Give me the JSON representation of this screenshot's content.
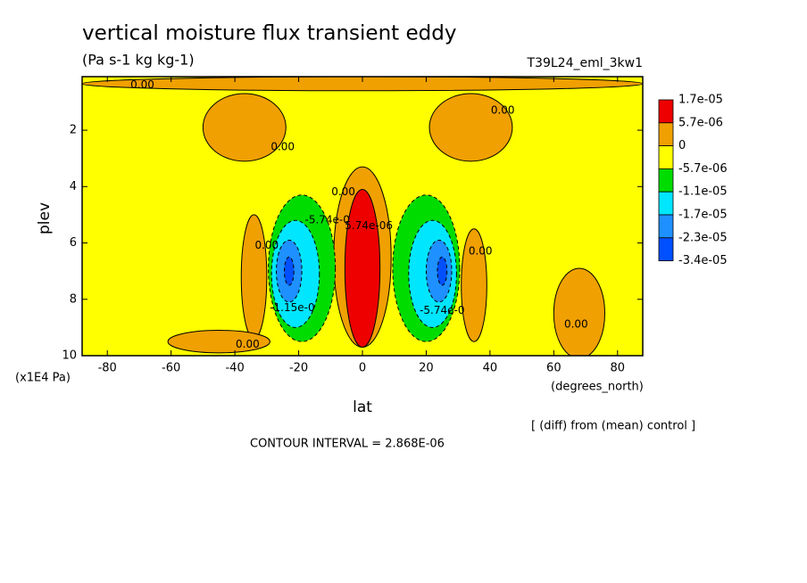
{
  "chart_data": {
    "type": "contour",
    "title": "vertical moisture flux transient eddy",
    "subtitle": "(Pa s-1 kg kg-1)",
    "run_label": "T39L24_eml_3kw1",
    "x_label": "lat",
    "x_units": "(degrees_north)",
    "y_label": "plev",
    "y_units": "(x1E4 Pa)",
    "note": "[ (diff) from (mean) control ]",
    "contour_interval": "CONTOUR INTERVAL = 2.868E-06",
    "xlim": [
      -87.9,
      87.9
    ],
    "xticks": [
      -80,
      -60,
      -40,
      -20,
      0,
      20,
      40,
      60,
      80
    ],
    "ylim": [
      10,
      0.1
    ],
    "yticks": [
      2,
      4,
      6,
      8,
      10
    ],
    "levels": [
      {
        "value": 1.7e-05,
        "label": "1.7e-05"
      },
      {
        "value": 5.7e-06,
        "label": "5.7e-06"
      },
      0,
      {
        "value": -5.7e-06,
        "label": "-5.7e-06"
      },
      {
        "value": -1.1e-05,
        "label": "-1.1e-05"
      },
      {
        "value": -1.7e-05,
        "label": "-1.7e-05"
      },
      {
        "value": -2.3e-05,
        "label": "-2.3e-05"
      },
      {
        "value": -3.4e-05,
        "label": "-3.4e-05"
      }
    ],
    "colors": [
      "#ee0000",
      "#f0a000",
      "#ffff00",
      "#00dc00",
      "#00e6ff",
      "#1e90ff",
      "#0050ff"
    ],
    "regions": [
      {
        "lat": 0,
        "plev": 0.35,
        "dlat": 88,
        "dplev": 0.25,
        "value": 3e-06
      },
      {
        "lat": -37,
        "plev": 1.9,
        "dlat": 13,
        "dplev": 1.2,
        "value": 3e-06
      },
      {
        "lat": 34,
        "plev": 1.9,
        "dlat": 13,
        "dplev": 1.2,
        "value": 3e-06
      },
      {
        "lat": 0,
        "plev": 6.5,
        "dlat": 9,
        "dplev": 3.2,
        "value": 3e-06
      },
      {
        "lat": -34,
        "plev": 7.2,
        "dlat": 4,
        "dplev": 2.2,
        "value": 3e-06
      },
      {
        "lat": 35,
        "plev": 7.5,
        "dlat": 4,
        "dplev": 2.0,
        "value": 3e-06
      },
      {
        "lat": -45,
        "plev": 9.5,
        "dlat": 16,
        "dplev": 0.4,
        "value": 3e-06
      },
      {
        "lat": 68,
        "plev": 8.5,
        "dlat": 8,
        "dplev": 1.6,
        "value": 3e-06
      },
      {
        "lat": -19,
        "plev": 6.9,
        "dlat": 10.5,
        "dplev": 2.6,
        "value": -8e-06
      },
      {
        "lat": 20,
        "plev": 6.9,
        "dlat": 10.5,
        "dplev": 2.6,
        "value": -8e-06
      },
      {
        "lat": -21,
        "plev": 7.1,
        "dlat": 7.5,
        "dplev": 1.9,
        "value": -1.4e-05
      },
      {
        "lat": 22,
        "plev": 7.1,
        "dlat": 7.5,
        "dplev": 1.9,
        "value": -1.4e-05
      },
      {
        "lat": -23,
        "plev": 7.0,
        "dlat": 4,
        "dplev": 1.1,
        "value": -2e-05
      },
      {
        "lat": 24,
        "plev": 7.0,
        "dlat": 4,
        "dplev": 1.1,
        "value": -2e-05
      },
      {
        "lat": -23,
        "plev": 7.0,
        "dlat": 1.5,
        "dplev": 0.5,
        "value": -2.8e-05
      },
      {
        "lat": 25,
        "plev": 7.0,
        "dlat": 1.5,
        "dplev": 0.5,
        "value": -2.8e-05
      },
      {
        "lat": 0,
        "plev": 6.9,
        "dlat": 5.5,
        "dplev": 2.8,
        "value": 1.1e-05
      }
    ],
    "annotations": [
      {
        "text": "0.00",
        "lat": -69,
        "plev": 0.4
      },
      {
        "text": "0.00",
        "lat": -25,
        "plev": 2.6
      },
      {
        "text": "0.00",
        "lat": 44,
        "plev": 1.3
      },
      {
        "text": "0.00",
        "lat": -6,
        "plev": 4.2
      },
      {
        "text": "0.00",
        "lat": -30,
        "plev": 6.1
      },
      {
        "text": "0.00",
        "lat": 37,
        "plev": 6.3
      },
      {
        "text": "0.00",
        "lat": 67,
        "plev": 8.9
      },
      {
        "text": "0.00",
        "lat": -36,
        "plev": 9.6
      },
      {
        "text": "5.74e-06",
        "lat": 2,
        "plev": 5.4
      },
      {
        "text": "-5.74e-0",
        "lat": -11,
        "plev": 5.2
      },
      {
        "text": "-1.15e-0",
        "lat": -22,
        "plev": 8.3
      },
      {
        "text": "-5.74e-0",
        "lat": 25,
        "plev": 8.4
      }
    ]
  }
}
